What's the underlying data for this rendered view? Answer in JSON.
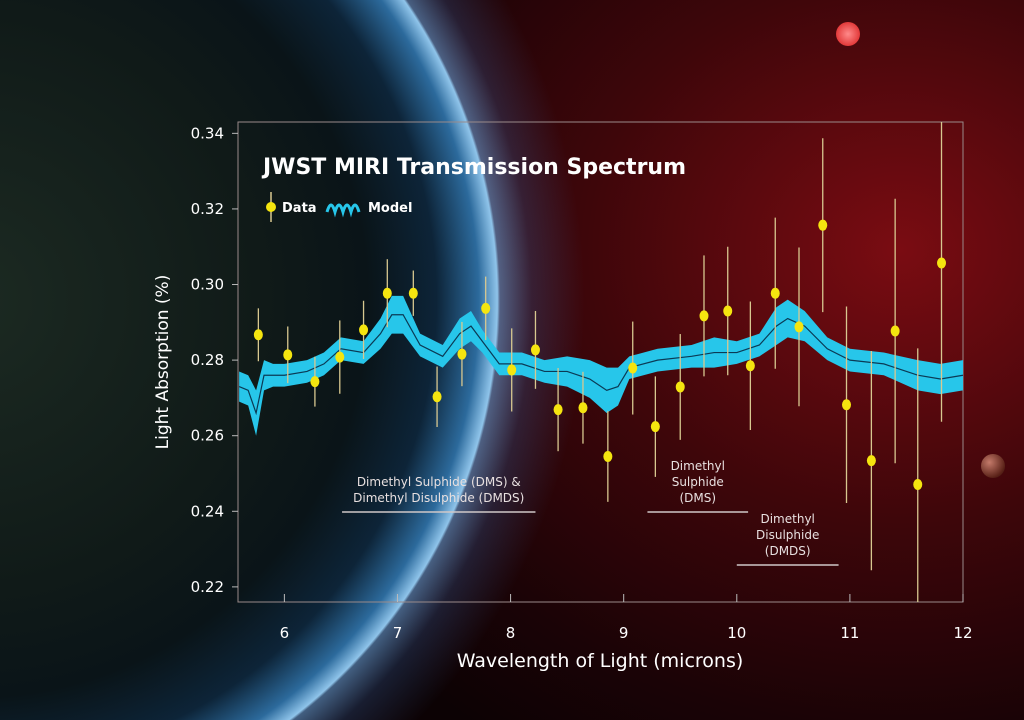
{
  "chart_data": {
    "type": "scatter",
    "title": "JWST MIRI Transmission Spectrum",
    "xlabel": "Wavelength of Light (microns)",
    "ylabel": "Light Absorption (%)",
    "xlim": [
      5.59,
      12
    ],
    "ylim": [
      0.216,
      0.343
    ],
    "xticks": [
      6,
      7,
      8,
      9,
      10,
      11,
      12
    ],
    "yticks": [
      0.22,
      0.24,
      0.26,
      0.28,
      0.3,
      0.32,
      0.34
    ],
    "ytick_labels": [
      "0.22",
      "0.24",
      "0.26",
      "0.28",
      "0.30",
      "0.32",
      "0.34"
    ],
    "grid": false,
    "legend": {
      "placement": "top-left",
      "entries": [
        {
          "label": "Data",
          "color": "#f5e50f"
        },
        {
          "label": "Model",
          "color": "#27c6ea"
        }
      ]
    },
    "series": [
      {
        "name": "Data",
        "kind": "errorbar",
        "color": "#f5e50f",
        "errcolor": "#d8c890",
        "x": [
          5.77,
          6.03,
          6.27,
          6.49,
          6.7,
          6.91,
          7.14,
          7.35,
          7.57,
          7.78,
          8.01,
          8.22,
          8.42,
          8.64,
          8.86,
          9.08,
          9.28,
          9.5,
          9.71,
          9.92,
          10.12,
          10.34,
          10.55,
          10.76,
          10.97,
          11.19,
          11.4,
          11.6,
          11.81
        ],
        "y": [
          0.2867,
          0.2814,
          0.2743,
          0.2808,
          0.288,
          0.2977,
          0.2977,
          0.2703,
          0.2816,
          0.2937,
          0.2774,
          0.2827,
          0.2669,
          0.2674,
          0.2545,
          0.2779,
          0.2624,
          0.2729,
          0.2917,
          0.293,
          0.2785,
          0.2977,
          0.2888,
          0.3157,
          0.2682,
          0.2534,
          0.2877,
          0.2471,
          0.3057
        ],
        "yerr": [
          0.007,
          0.0075,
          0.0066,
          0.0097,
          0.0077,
          0.009,
          0.006,
          0.008,
          0.0085,
          0.0084,
          0.011,
          0.0103,
          0.011,
          0.0095,
          0.012,
          0.0123,
          0.0133,
          0.014,
          0.016,
          0.017,
          0.017,
          0.02,
          0.021,
          0.023,
          0.026,
          0.029,
          0.035,
          0.036,
          0.042
        ]
      },
      {
        "name": "Model",
        "kind": "band",
        "color": "#27c6ea",
        "linecolor": "#0b3a55",
        "x": [
          5.6,
          5.68,
          5.75,
          5.82,
          5.9,
          6.0,
          6.2,
          6.35,
          6.5,
          6.7,
          6.85,
          6.95,
          7.05,
          7.2,
          7.4,
          7.55,
          7.65,
          7.75,
          7.9,
          8.1,
          8.3,
          8.5,
          8.7,
          8.85,
          8.95,
          9.05,
          9.3,
          9.6,
          9.8,
          10.0,
          10.2,
          10.35,
          10.45,
          10.6,
          10.8,
          11.0,
          11.3,
          11.6,
          11.8,
          12.0
        ],
        "y": [
          0.273,
          0.272,
          0.266,
          0.276,
          0.276,
          0.276,
          0.277,
          0.279,
          0.283,
          0.282,
          0.287,
          0.292,
          0.292,
          0.284,
          0.281,
          0.287,
          0.289,
          0.285,
          0.279,
          0.279,
          0.277,
          0.277,
          0.275,
          0.272,
          0.273,
          0.278,
          0.28,
          0.281,
          0.282,
          0.282,
          0.284,
          0.289,
          0.291,
          0.289,
          0.283,
          0.28,
          0.279,
          0.276,
          0.275,
          0.276
        ],
        "halfwidth": [
          0.004,
          0.004,
          0.006,
          0.004,
          0.003,
          0.003,
          0.003,
          0.003,
          0.003,
          0.003,
          0.004,
          0.005,
          0.005,
          0.003,
          0.003,
          0.004,
          0.004,
          0.003,
          0.003,
          0.003,
          0.003,
          0.004,
          0.005,
          0.006,
          0.005,
          0.003,
          0.003,
          0.003,
          0.004,
          0.003,
          0.003,
          0.005,
          0.005,
          0.004,
          0.003,
          0.003,
          0.003,
          0.004,
          0.004,
          0.004
        ]
      }
    ],
    "annotations": [
      {
        "lines": [
          "Dimethyl Sulphide (DMS) &",
          "Dimethyl Disulphide (DMDS)"
        ],
        "x_range": [
          6.51,
          8.22
        ]
      },
      {
        "lines": [
          "Dimethyl",
          "Sulphide",
          "(DMS)"
        ],
        "x_range": [
          9.21,
          10.1
        ]
      },
      {
        "lines": [
          "Dimethyl",
          "Disulphide",
          "(DMDS)"
        ],
        "x_range": [
          10.0,
          10.9
        ]
      }
    ]
  }
}
